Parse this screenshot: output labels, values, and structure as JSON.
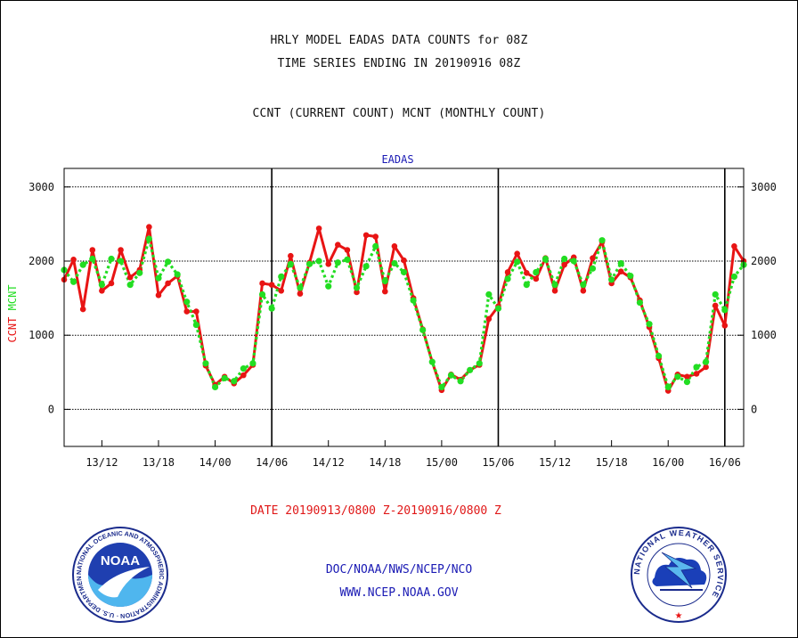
{
  "header": {
    "title_line1": "HRLY MODEL EADAS DATA COUNTS for 08Z",
    "title_line2": "TIME SERIES ENDING IN 20190916 08Z",
    "title_line3": "CCNT (CURRENT COUNT) MCNT (MONTHLY COUNT)"
  },
  "footer": {
    "date_range": "DATE 20190913/0800 Z-20190916/0800 Z",
    "org_line": "DOC/NOAA/NWS/NCEP/NCO",
    "url_line": "WWW.NCEP.NOAA.GOV"
  },
  "logos": {
    "noaa": {
      "label": "NOAA",
      "ring_text": "NATIONAL OCEANIC AND ATMOSPHERIC ADMINISTRATION · U.S. DEPARTMENT OF COMMERCE"
    },
    "nws": {
      "ring_text": "NATIONAL WEATHER SERVICE"
    }
  },
  "colors": {
    "ccnt": "#e81414",
    "mcnt": "#22dd22",
    "label_blue": "#1a1ab4",
    "date_red": "#e01818"
  },
  "chart_data": {
    "type": "line",
    "title": "EADAS",
    "ylabel_parts": [
      {
        "text": "CCNT",
        "color": "#e81414"
      },
      {
        "text": "MCNT",
        "color": "#22dd22"
      }
    ],
    "ylim": [
      -500,
      3250
    ],
    "xlim": [
      0,
      72
    ],
    "yticks": [
      0,
      1000,
      2000,
      3000
    ],
    "ytick_labels": [
      "0",
      "1000",
      "2000",
      "3000"
    ],
    "xticks": [
      4,
      10,
      16,
      22,
      28,
      34,
      40,
      46,
      52,
      58,
      64,
      70
    ],
    "xtick_labels": [
      "13/12",
      "13/18",
      "14/00",
      "14/06",
      "14/12",
      "14/18",
      "15/00",
      "15/06",
      "15/12",
      "15/18",
      "16/00",
      "16/06"
    ],
    "day_boundaries": [
      22,
      46,
      70
    ],
    "grid": true,
    "series": [
      {
        "name": "CCNT",
        "color": "#e81414",
        "style": "solid",
        "values": [
          1750,
          2020,
          1350,
          2150,
          1600,
          1700,
          2150,
          1780,
          1880,
          2460,
          1540,
          1700,
          1800,
          1320,
          1320,
          590,
          330,
          440,
          350,
          460,
          600,
          1700,
          1680,
          1600,
          2070,
          1560,
          1980,
          2440,
          1960,
          2220,
          2150,
          1580,
          2350,
          2330,
          1590,
          2200,
          2010,
          1500,
          1080,
          640,
          260,
          470,
          400,
          530,
          600,
          1220,
          1390,
          1850,
          2100,
          1840,
          1760,
          2040,
          1600,
          1950,
          2050,
          1600,
          2040,
          2260,
          1700,
          1860,
          1780,
          1470,
          1110,
          690,
          250,
          470,
          440,
          480,
          570,
          1400,
          1130,
          2200,
          2000
        ]
      },
      {
        "name": "MCNT",
        "color": "#22dd22",
        "style": "dotted",
        "values": [
          1880,
          1720,
          1950,
          2030,
          1680,
          2030,
          2000,
          1680,
          1840,
          2300,
          1770,
          1990,
          1820,
          1450,
          1140,
          620,
          300,
          420,
          380,
          550,
          620,
          1550,
          1360,
          1790,
          1960,
          1640,
          1960,
          2000,
          1660,
          1980,
          2020,
          1640,
          1930,
          2200,
          1730,
          1970,
          1850,
          1470,
          1070,
          640,
          300,
          460,
          380,
          530,
          620,
          1550,
          1360,
          1760,
          1990,
          1680,
          1850,
          2030,
          1680,
          2030,
          2000,
          1680,
          1900,
          2280,
          1750,
          1970,
          1800,
          1440,
          1150,
          720,
          300,
          440,
          370,
          570,
          640,
          1550,
          1340,
          1790,
          1950
        ]
      }
    ]
  }
}
